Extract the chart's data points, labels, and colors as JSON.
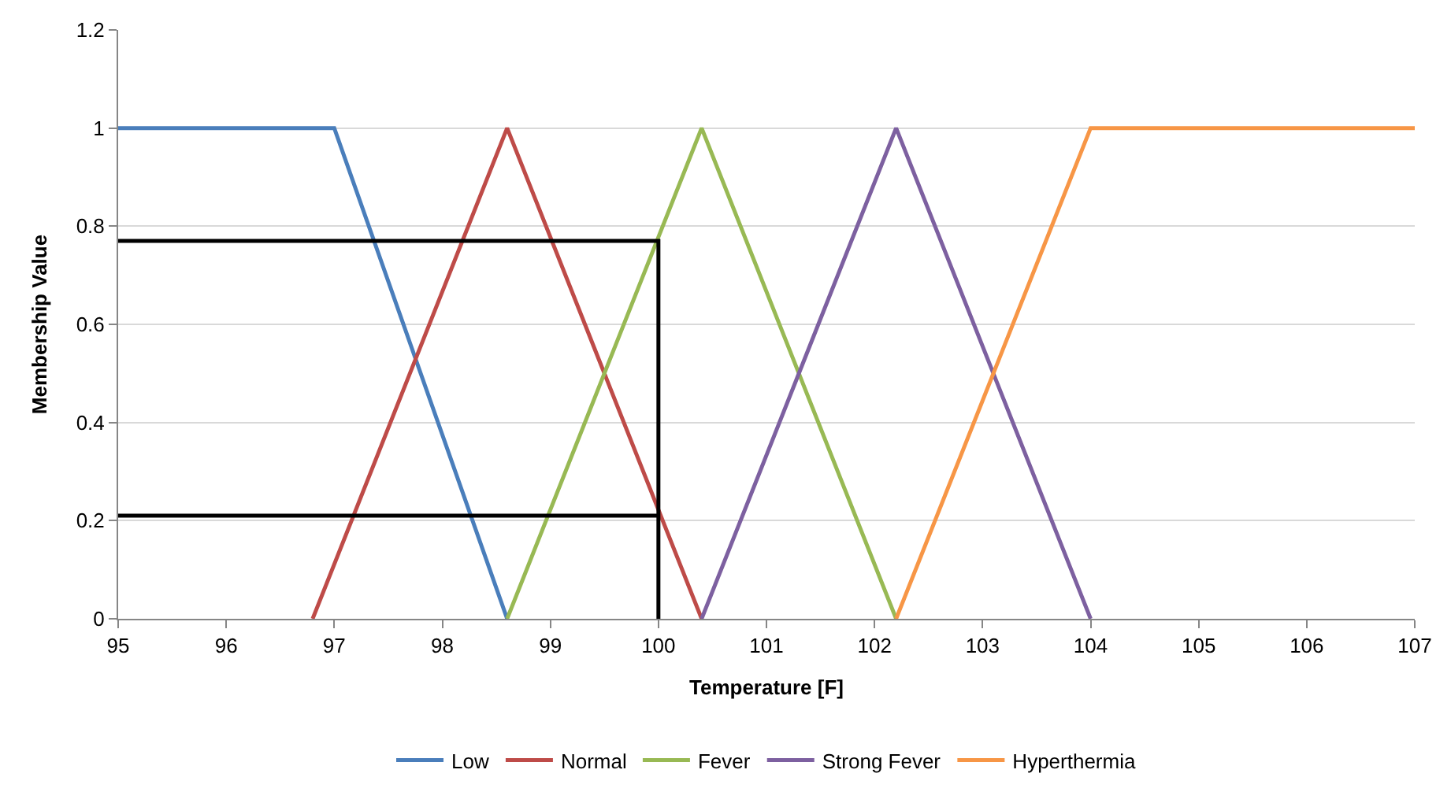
{
  "chart_data": {
    "type": "line",
    "xlabel": "Temperature [F]",
    "ylabel": "Membership Value",
    "xlim": [
      95,
      107
    ],
    "xticks": [
      95,
      96,
      97,
      98,
      99,
      100,
      101,
      102,
      103,
      104,
      105,
      106,
      107
    ],
    "ylim": [
      0,
      1.2
    ],
    "yticks": [
      0,
      0.2,
      0.4,
      0.6,
      0.8,
      1,
      1.2
    ],
    "grid": "y",
    "legend": "bottom",
    "marker": "none",
    "line_style": "solid",
    "series": [
      {
        "name": "Low",
        "color": "#4a7ebb",
        "x": [
          95,
          97,
          98.6
        ],
        "values": [
          1,
          1,
          0
        ]
      },
      {
        "name": "Normal",
        "color": "#be4b48",
        "x": [
          96.8,
          98.6,
          100.4
        ],
        "values": [
          0,
          1,
          0
        ]
      },
      {
        "name": "Fever",
        "color": "#98b954",
        "x": [
          98.6,
          100.4,
          102.2
        ],
        "values": [
          0,
          1,
          0
        ]
      },
      {
        "name": "Strong Fever",
        "color": "#7d60a0",
        "x": [
          100.4,
          102.2,
          104
        ],
        "values": [
          0,
          1,
          0
        ]
      },
      {
        "name": "Hyperthermia",
        "color": "#f79646",
        "x": [
          102.2,
          104,
          107
        ],
        "values": [
          0,
          1,
          1
        ]
      },
      {
        "color": "#000000",
        "x": [
          95,
          100,
          100
        ],
        "values": [
          0.77,
          0.77,
          0
        ]
      },
      {
        "color": "#000000",
        "x": [
          95,
          100
        ],
        "values": [
          0.21,
          0.21
        ]
      }
    ]
  }
}
